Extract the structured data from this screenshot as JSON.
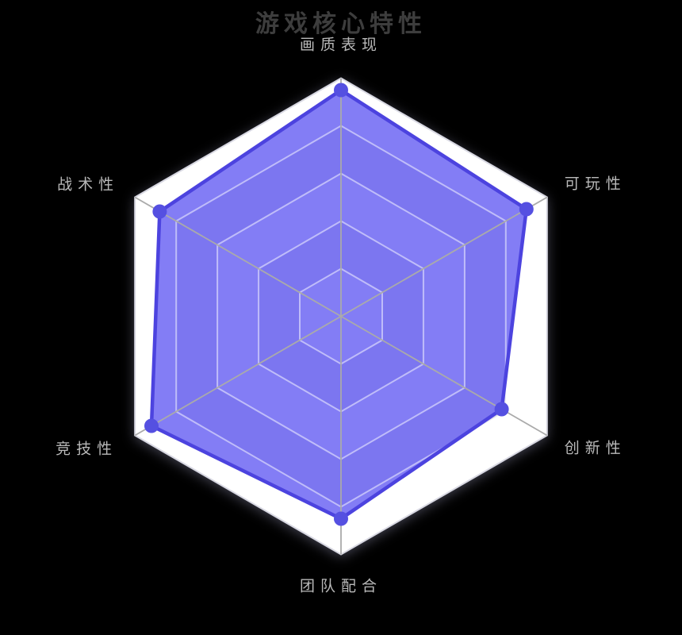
{
  "title": "游戏核心特性",
  "chart_data": {
    "type": "radar",
    "title": "游戏核心特性",
    "categories": [
      "画质表现",
      "可玩性",
      "创新性",
      "团队配合",
      "竞技性",
      "战术性"
    ],
    "series": [
      {
        "name": "游戏核心特性",
        "values": [
          95,
          90,
          78,
          85,
          92,
          88
        ]
      }
    ],
    "max": 100,
    "rings": 5,
    "grid": "hexagon",
    "legend_position": "none",
    "colors": {
      "background": "#000000",
      "title_color": "#3d3d3d",
      "label_color": "#b9b9b9",
      "band_light": "#ffffff",
      "band_dark": "#dadae6",
      "ring_line": "rgba(255,255,255,0.5)",
      "axis_line": "#aaaaaa",
      "outer_border": "#d9d9e3",
      "fill": "rgba(100,92,242,0.8)",
      "stroke": "#4c43df",
      "dot": "#5550e1"
    }
  }
}
